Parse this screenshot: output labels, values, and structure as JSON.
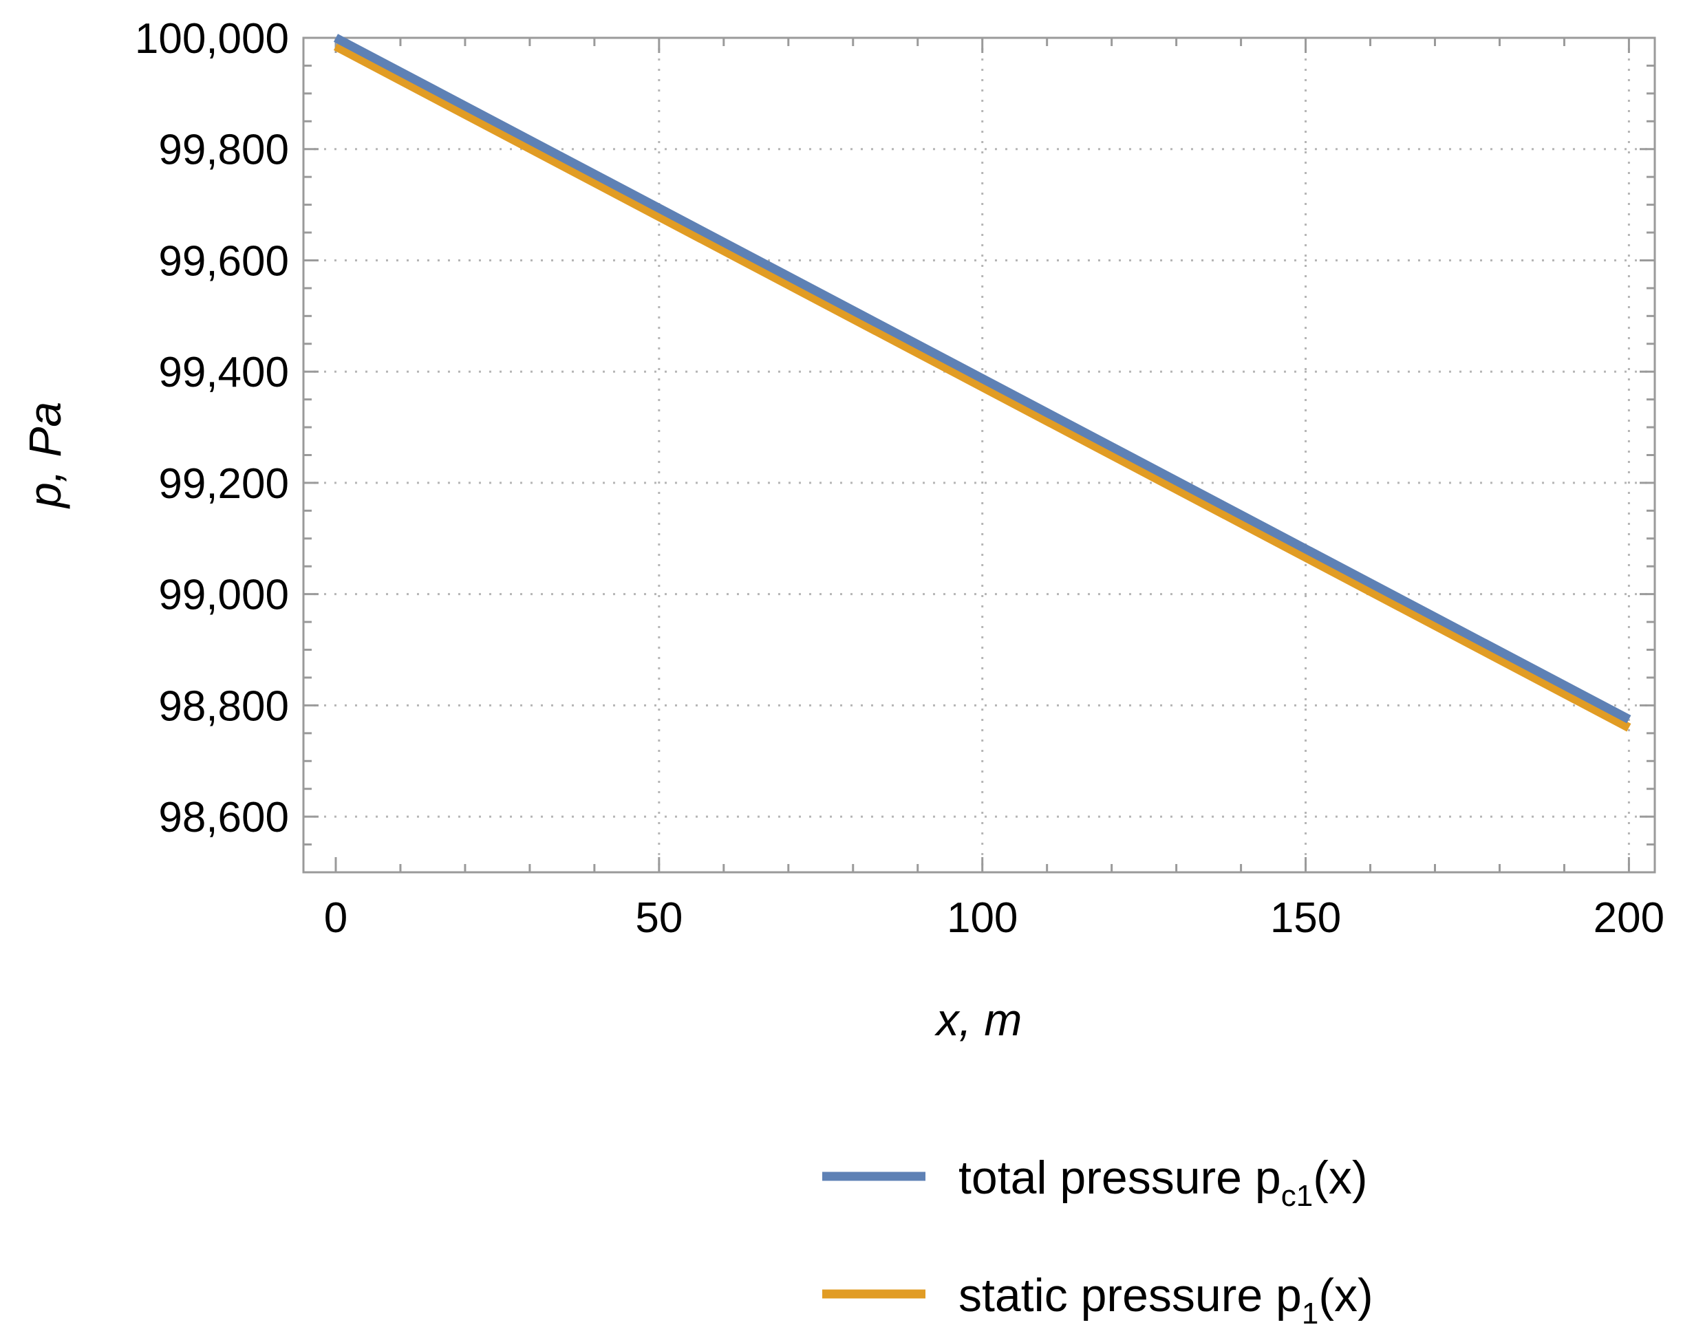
{
  "chart_data": {
    "type": "line",
    "title": "",
    "xlabel": "x, m",
    "ylabel": "p, Pa",
    "xlim": [
      -5,
      204
    ],
    "ylim": [
      98500,
      100000
    ],
    "x_ticks": [
      0,
      50,
      100,
      150,
      200
    ],
    "x_tick_labels": [
      "0",
      "50",
      "100",
      "150",
      "200"
    ],
    "y_ticks": [
      98600,
      98800,
      99000,
      99200,
      99400,
      99600,
      99800,
      100000
    ],
    "y_tick_labels": [
      "98,600",
      "98,800",
      "99,000",
      "99,200",
      "99,400",
      "99,600",
      "99,800",
      "100,000"
    ],
    "grid": true,
    "legend_position": "bottom-right, below plot",
    "series": [
      {
        "name": "total pressure p_c1(x)",
        "label_main": "total pressure p",
        "label_sub": "c1",
        "label_tail": "(x)",
        "color": "#5E81B5",
        "x": [
          0,
          200
        ],
        "y": [
          100000,
          98775
        ]
      },
      {
        "name": "static pressure p_1(x)",
        "label_main": "static pressure p",
        "label_sub": "1",
        "label_tail": "(x)",
        "color": "#E19C24",
        "x": [
          0,
          200
        ],
        "y": [
          99985,
          98760
        ]
      }
    ]
  }
}
